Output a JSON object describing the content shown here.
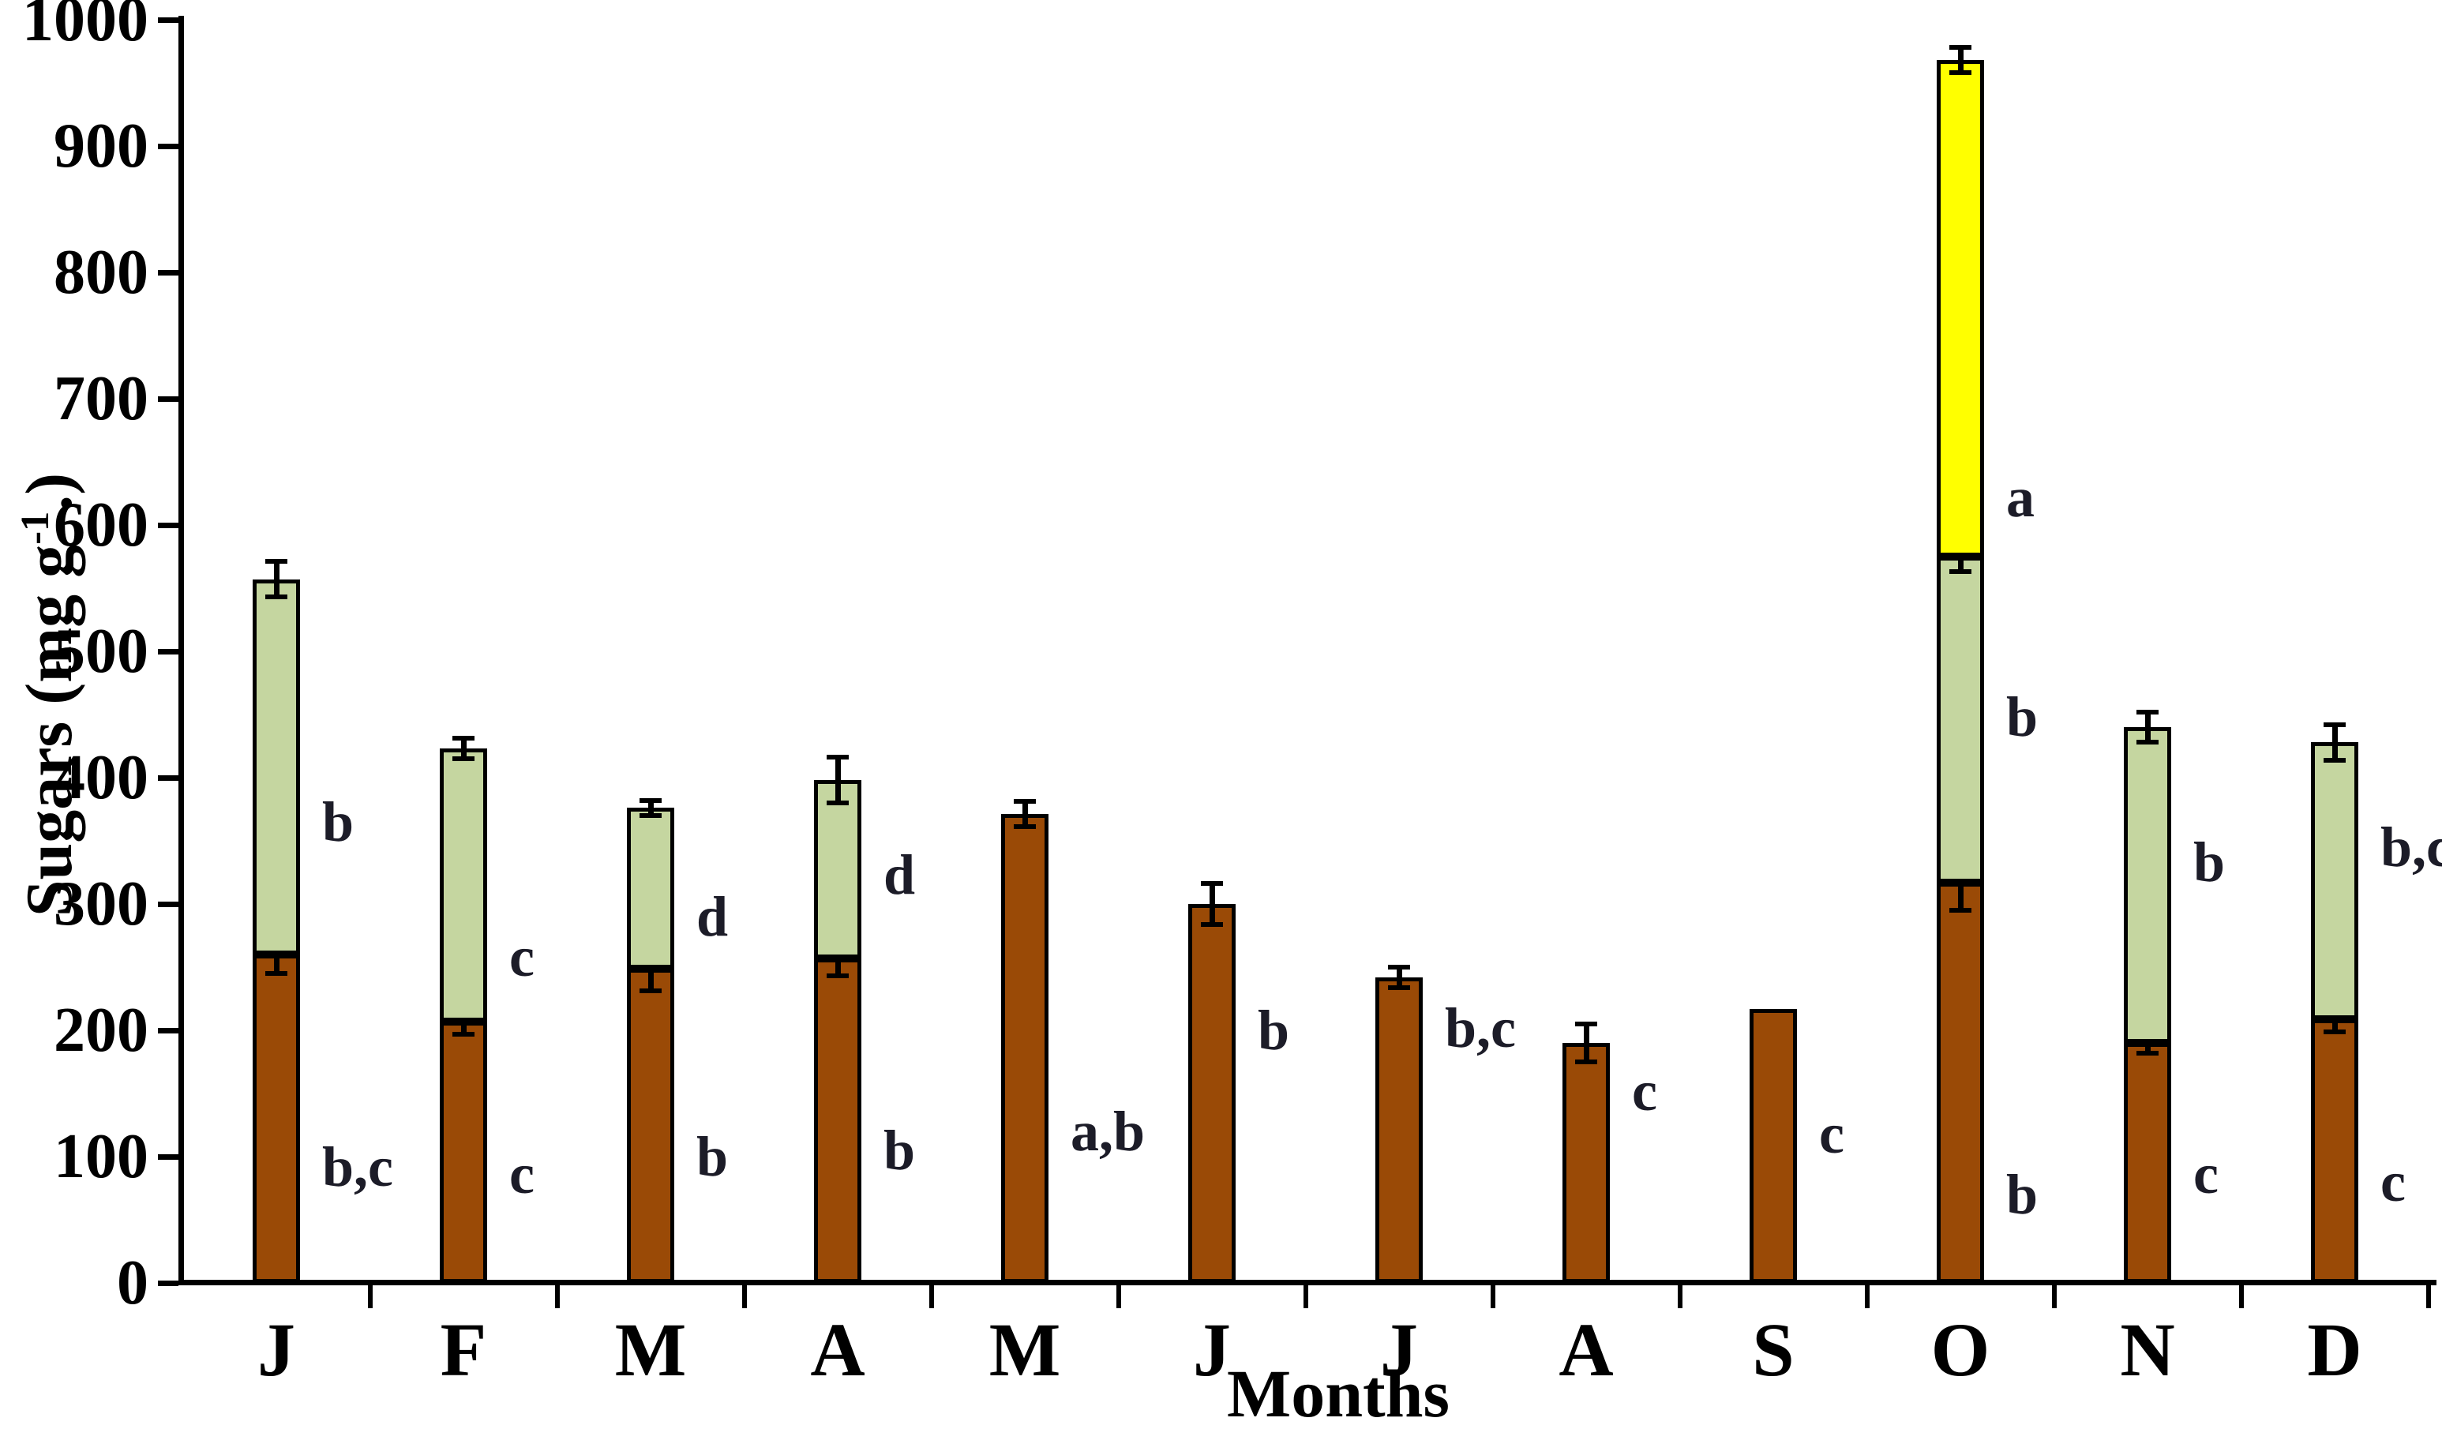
{
  "chart_data": {
    "type": "bar",
    "subtype": "stacked-bar-with-error-bars",
    "title": "",
    "xlabel": "Months",
    "ylabel": {
      "prefix": "Sugars (mg g",
      "superscript": "-1",
      "suffix": ".)"
    },
    "ylim": [
      0,
      1000
    ],
    "ytick_interval": 100,
    "ytick_labels": [
      "0",
      "100",
      "200",
      "300",
      "400",
      "500",
      "600",
      "700",
      "800",
      "900",
      "1000"
    ],
    "categories": [
      "J",
      "F",
      "M",
      "A",
      "M",
      "J",
      "J",
      "A",
      "S",
      "O",
      "N",
      "D"
    ],
    "grid": "off",
    "legend": "none",
    "colors": {
      "brown": "#9A4A06",
      "green": "#C5D6A0",
      "yellow": "#FFFF00"
    },
    "annotation_note": "letters beside bars are statistical significance groups; letter_y is their vertical position in data units",
    "bars": [
      {
        "month": "J",
        "segments": [
          {
            "color": "brown",
            "value": 260,
            "err": 15,
            "letter": "b,c",
            "letter_y": 92
          },
          {
            "color": "green",
            "value": 297,
            "err": 14,
            "letter": "b",
            "letter_y": 365
          }
        ]
      },
      {
        "month": "F",
        "segments": [
          {
            "color": "brown",
            "value": 207,
            "err": 10,
            "letter": "c",
            "letter_y": 86
          },
          {
            "color": "green",
            "value": 216,
            "err": 8,
            "letter": "c",
            "letter_y": 258
          }
        ]
      },
      {
        "month": "M",
        "segments": [
          {
            "color": "brown",
            "value": 249,
            "err": 18,
            "letter": "b",
            "letter_y": 100
          },
          {
            "color": "green",
            "value": 127,
            "err": 6,
            "letter": "d",
            "letter_y": 290
          }
        ]
      },
      {
        "month": "A",
        "segments": [
          {
            "color": "brown",
            "value": 257,
            "err": 14,
            "letter": "b",
            "letter_y": 105
          },
          {
            "color": "green",
            "value": 141,
            "err": 18,
            "letter": "d",
            "letter_y": 323
          }
        ]
      },
      {
        "month": "M",
        "segments": [
          {
            "color": "brown",
            "value": 371,
            "err": 10,
            "letter": "a,b",
            "letter_y": 120
          }
        ]
      },
      {
        "month": "J",
        "segments": [
          {
            "color": "brown",
            "value": 300,
            "err": 16,
            "letter": "b",
            "letter_y": 200
          }
        ]
      },
      {
        "month": "J",
        "segments": [
          {
            "color": "brown",
            "value": 242,
            "err": 8,
            "letter": "b,c",
            "letter_y": 202
          }
        ]
      },
      {
        "month": "A",
        "segments": [
          {
            "color": "brown",
            "value": 190,
            "err": 15,
            "letter": "c",
            "letter_y": 152
          }
        ]
      },
      {
        "month": "S",
        "segments": [
          {
            "color": "brown",
            "value": 217,
            "err": null,
            "letter": "c",
            "letter_y": 118
          }
        ]
      },
      {
        "month": "O",
        "segments": [
          {
            "color": "brown",
            "value": 317,
            "err": 22,
            "letter": "b",
            "letter_y": 70
          },
          {
            "color": "green",
            "value": 258,
            "err": 12,
            "letter": "b",
            "letter_y": 448
          },
          {
            "color": "yellow",
            "value": 393,
            "err": 10,
            "letter": "a",
            "letter_y": 622
          }
        ]
      },
      {
        "month": "N",
        "segments": [
          {
            "color": "brown",
            "value": 190,
            "err": 8,
            "letter": "c",
            "letter_y": 86
          },
          {
            "color": "green",
            "value": 250,
            "err": 12,
            "letter": "b",
            "letter_y": 333
          }
        ]
      },
      {
        "month": "D",
        "segments": [
          {
            "color": "brown",
            "value": 209,
            "err": 10,
            "letter": "c",
            "letter_y": 80
          },
          {
            "color": "green",
            "value": 219,
            "err": 14,
            "letter": "b,c",
            "letter_y": 345
          }
        ]
      }
    ]
  }
}
